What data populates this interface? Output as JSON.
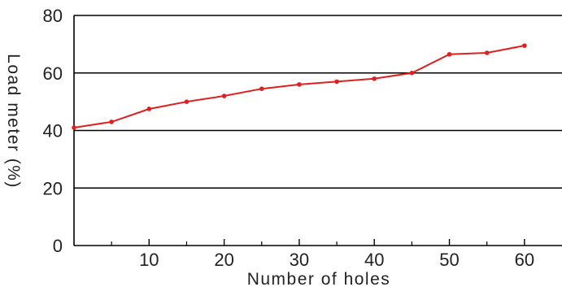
{
  "chart_data": {
    "type": "line",
    "title": "",
    "xlabel": "Number of holes",
    "ylabel": "Load meter (%)",
    "xlim": [
      0,
      65
    ],
    "ylim": [
      0,
      80
    ],
    "x_ticks": [
      10,
      20,
      30,
      40,
      50,
      60
    ],
    "x_minor_ticks": [
      5,
      15,
      25,
      35,
      45,
      55
    ],
    "y_ticks": [
      0,
      20,
      40,
      60,
      80
    ],
    "grid": "horizontal",
    "series": [
      {
        "color": "#e02020",
        "x": [
          0,
          5,
          10,
          15,
          20,
          25,
          30,
          35,
          40,
          45,
          50,
          55,
          60
        ],
        "y": [
          41,
          43,
          47.5,
          50,
          52,
          54.5,
          56,
          57,
          58,
          60,
          66.5,
          67,
          69.5
        ]
      }
    ]
  }
}
